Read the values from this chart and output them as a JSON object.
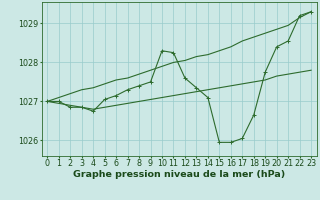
{
  "title": "Graphe pression niveau de la mer (hPa)",
  "xlabel_hours": [
    0,
    1,
    2,
    3,
    4,
    5,
    6,
    7,
    8,
    9,
    10,
    11,
    12,
    13,
    14,
    15,
    16,
    17,
    18,
    19,
    20,
    21,
    22,
    23
  ],
  "line_actual": [
    1027.0,
    1027.0,
    1026.85,
    1026.85,
    1026.75,
    1027.05,
    1027.15,
    1027.3,
    1027.4,
    1027.5,
    1028.3,
    1028.25,
    1027.6,
    1027.35,
    1027.1,
    1025.95,
    1025.95,
    1026.05,
    1026.65,
    1027.75,
    1028.4,
    1028.55,
    1029.2,
    1029.3
  ],
  "line_max": [
    1027.0,
    1027.1,
    1027.2,
    1027.3,
    1027.35,
    1027.45,
    1027.55,
    1027.6,
    1027.7,
    1027.8,
    1027.9,
    1028.0,
    1028.05,
    1028.15,
    1028.2,
    1028.3,
    1028.4,
    1028.55,
    1028.65,
    1028.75,
    1028.85,
    1028.95,
    1029.15,
    1029.3
  ],
  "line_min": [
    1027.0,
    1026.95,
    1026.9,
    1026.85,
    1026.8,
    1026.85,
    1026.9,
    1026.95,
    1027.0,
    1027.05,
    1027.1,
    1027.15,
    1027.2,
    1027.25,
    1027.3,
    1027.35,
    1027.4,
    1027.45,
    1027.5,
    1027.55,
    1027.65,
    1027.7,
    1027.75,
    1027.8
  ],
  "ylim": [
    1025.6,
    1029.55
  ],
  "yticks": [
    1026,
    1027,
    1028,
    1029
  ],
  "bg_color": "#cce8e5",
  "line_color": "#2d6b2d",
  "grid_color": "#99cccc",
  "title_color": "#1a4a1a",
  "title_fontsize": 6.8,
  "tick_fontsize": 5.8,
  "lw": 0.8,
  "marker_size": 2.2
}
